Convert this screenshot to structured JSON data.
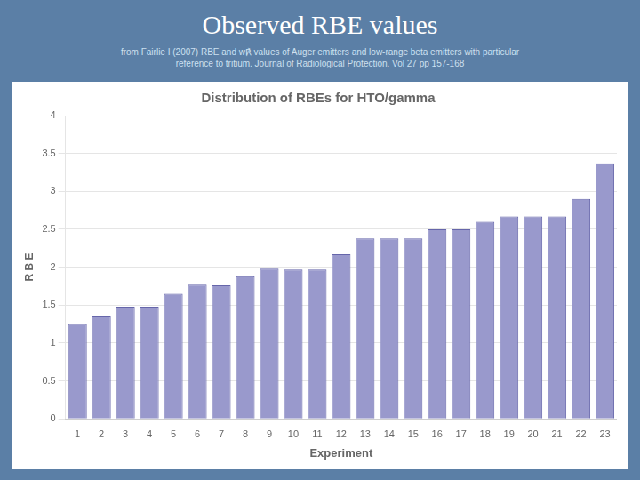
{
  "chart_data": {
    "type": "bar",
    "title": "Observed RBE values",
    "subtitle": [
      "from Fairlie I (2007) RBE and w℟ values of Auger emitters and low-range beta emitters with particular",
      "reference to tritium. Journal of Radiological Protection. Vol 27 pp 157-168"
    ],
    "chart_title": "Distribution of RBEs for HTO/gamma",
    "xlabel": "Experiment",
    "ylabel": "R B E",
    "categories": [
      "1",
      "2",
      "3",
      "4",
      "5",
      "6",
      "7",
      "8",
      "9",
      "10",
      "11",
      "12",
      "13",
      "14",
      "15",
      "16",
      "17",
      "18",
      "19",
      "20",
      "21",
      "22",
      "23"
    ],
    "values": [
      1.25,
      1.35,
      1.48,
      1.48,
      1.65,
      1.77,
      1.76,
      1.88,
      1.98,
      1.97,
      1.97,
      2.17,
      2.38,
      2.38,
      2.38,
      2.5,
      2.5,
      2.6,
      2.67,
      2.67,
      2.67,
      2.9,
      3.37
    ],
    "color": "#9999cc",
    "ylim": [
      0,
      4
    ],
    "yticks": [
      0,
      0.5,
      1,
      1.5,
      2,
      2.5,
      3,
      3.5,
      4
    ],
    "grid": true
  }
}
